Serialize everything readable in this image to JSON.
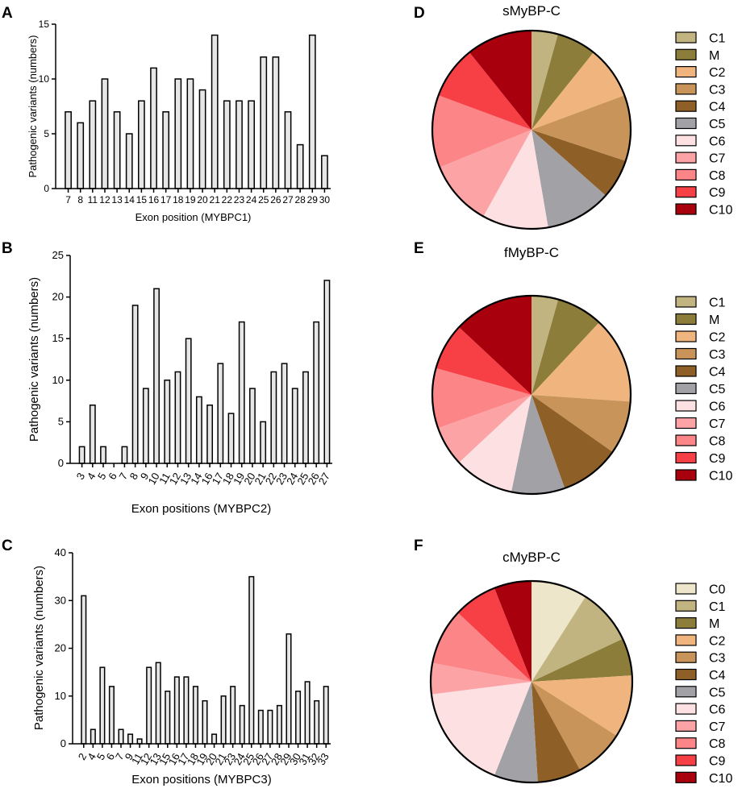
{
  "panels": {
    "a": "A",
    "b": "B",
    "c": "C",
    "d": "D",
    "e": "E",
    "f": "F"
  },
  "chart_data": [
    {
      "id": "A",
      "type": "bar",
      "title": "",
      "xlabel": "Exon position (MYBPC1)",
      "ylabel": "Pathogenic variants (numbers)",
      "ylim": [
        0,
        15
      ],
      "yticks": [
        0,
        5,
        10,
        15
      ],
      "categories": [
        "7",
        "8",
        "11",
        "12",
        "13",
        "14",
        "15",
        "16",
        "17",
        "18",
        "19",
        "20",
        "21",
        "22",
        "23",
        "24",
        "25",
        "26",
        "27",
        "28",
        "29",
        "30"
      ],
      "values": [
        7,
        6,
        8,
        10,
        7,
        5,
        8,
        11,
        7,
        10,
        10,
        9,
        14,
        8,
        8,
        8,
        12,
        12,
        7,
        4,
        14,
        3
      ]
    },
    {
      "id": "B",
      "type": "bar",
      "title": "",
      "xlabel": "Exon positions (MYBPC2)",
      "ylabel": "Pathogenic variants (numbers)",
      "ylim": [
        0,
        25
      ],
      "yticks": [
        0,
        5,
        10,
        15,
        20,
        25
      ],
      "categories": [
        "3",
        "4",
        "5",
        "6",
        "7",
        "8",
        "9",
        "10",
        "11",
        "12",
        "13",
        "14",
        "16",
        "17",
        "18",
        "19",
        "20",
        "21",
        "22",
        "23",
        "24",
        "25",
        "26",
        "27"
      ],
      "values": [
        2,
        7,
        2,
        0,
        2,
        19,
        9,
        21,
        10,
        11,
        15,
        8,
        7,
        12,
        6,
        17,
        9,
        5,
        11,
        12,
        9,
        11,
        17,
        22
      ]
    },
    {
      "id": "C",
      "type": "bar",
      "title": "",
      "xlabel": "Exon positions (MYBPC3)",
      "ylabel": "Pathogenic variants (numbers)",
      "ylim": [
        0,
        40
      ],
      "yticks": [
        0,
        10,
        20,
        30,
        40
      ],
      "categories": [
        "2",
        "4",
        "5",
        "6",
        "7",
        "9",
        "11",
        "12",
        "13",
        "15",
        "16",
        "17",
        "18",
        "19",
        "20",
        "21",
        "23",
        "24",
        "25",
        "26",
        "27",
        "28",
        "29",
        "30",
        "31",
        "32",
        "33"
      ],
      "values": [
        31,
        3,
        16,
        12,
        3,
        2,
        1,
        16,
        17,
        11,
        14,
        14,
        12,
        9,
        2,
        10,
        12,
        8,
        35,
        7,
        7,
        8,
        23,
        11,
        13,
        9,
        12
      ]
    },
    {
      "id": "D",
      "type": "pie",
      "title": "sMyBP-C",
      "labels": [
        "C1",
        "M",
        "C2",
        "C3",
        "C4",
        "C5",
        "C6",
        "C7",
        "C8",
        "C9",
        "C10"
      ],
      "values": [
        4,
        6,
        8,
        10,
        6,
        10,
        10,
        10,
        11,
        8,
        10
      ],
      "colors": [
        "#c2b480",
        "#8c7d3a",
        "#f0b57e",
        "#c8945a",
        "#8e5f26",
        "#a2a1a6",
        "#fde0e2",
        "#fca3a5",
        "#fb8587",
        "#f64046",
        "#a8000c"
      ]
    },
    {
      "id": "E",
      "type": "pie",
      "title": "fMyBP-C",
      "labels": [
        "C1",
        "M",
        "C2",
        "C3",
        "C4",
        "C5",
        "C6",
        "C7",
        "C8",
        "C9",
        "C10"
      ],
      "values": [
        4,
        7,
        13,
        8,
        9,
        8,
        9,
        6,
        9,
        7,
        12
      ],
      "colors": [
        "#c2b480",
        "#8c7d3a",
        "#f0b57e",
        "#c8945a",
        "#8e5f26",
        "#a2a1a6",
        "#fde0e2",
        "#fca3a5",
        "#fb8587",
        "#f64046",
        "#a8000c"
      ]
    },
    {
      "id": "F",
      "type": "pie",
      "title": "cMyBP-C",
      "labels": [
        "C0",
        "C1",
        "M",
        "C2",
        "C3",
        "C4",
        "C5",
        "C6",
        "C7",
        "C8",
        "C9",
        "C10"
      ],
      "values": [
        9,
        9,
        6,
        10,
        8,
        7,
        7,
        17,
        5,
        9,
        7,
        6
      ],
      "colors": [
        "#ede6ca",
        "#c2b480",
        "#8c7d3a",
        "#f0b57e",
        "#c8945a",
        "#8e5f26",
        "#a2a1a6",
        "#fde0e2",
        "#fca3a5",
        "#fb8587",
        "#f64046",
        "#a8000c"
      ]
    }
  ]
}
